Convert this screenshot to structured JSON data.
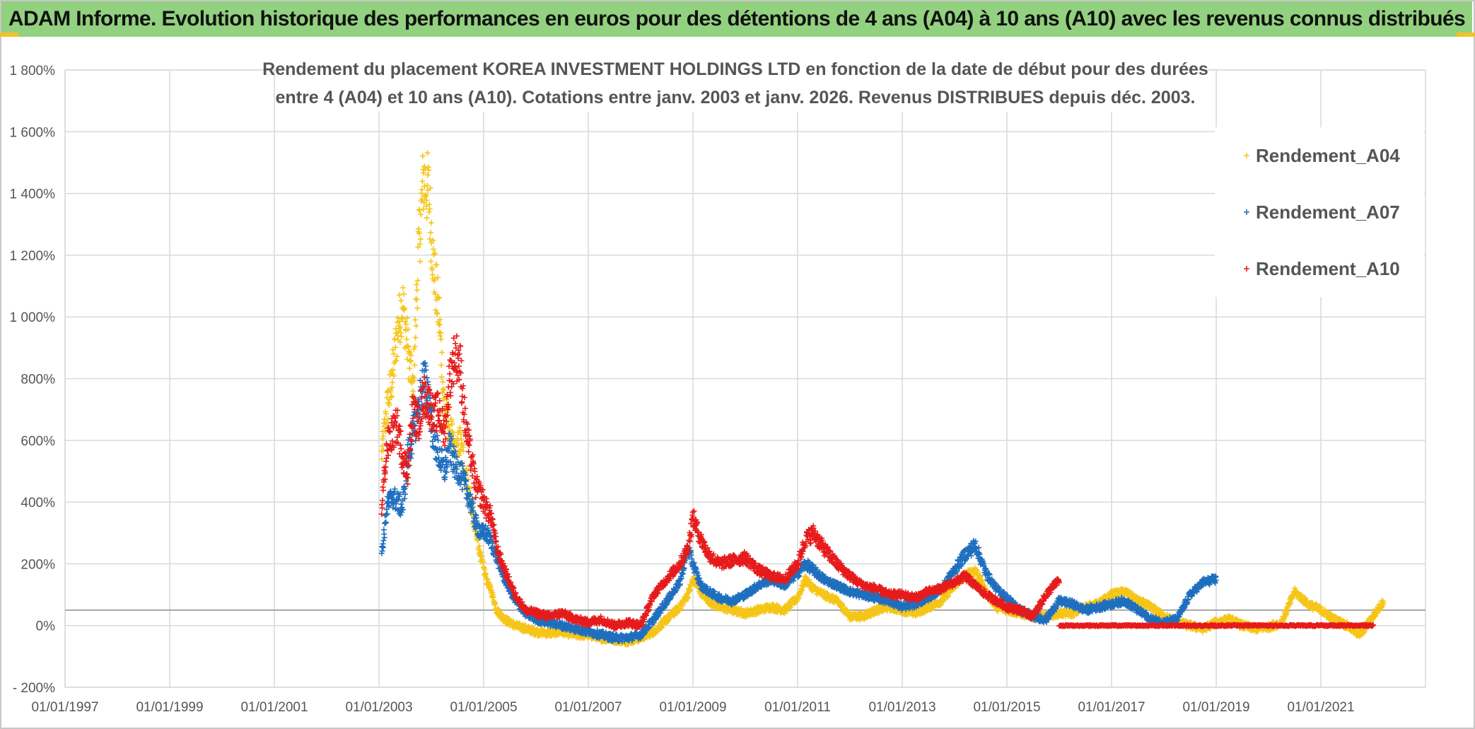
{
  "header": {
    "banner": "ADAM Informe. Evolution historique des performances en euros pour des détentions de 4 ans (A04) à 10 ans (A10) avec les revenus connus distribués"
  },
  "colors": {
    "banner_bg": "#92d17f",
    "accent": "#f2c22b",
    "A04": "#f5c518",
    "A07": "#1f6fbf",
    "A10": "#e61b1b"
  },
  "chart_data": {
    "type": "scatter",
    "title_lines": [
      "Rendement du placement KOREA INVESTMENT HOLDINGS LTD en fonction de la date de début pour des durées",
      "entre 4 (A04) et 10 ans (A10). Cotations entre janv. 2003 et janv. 2026. Revenus DISTRIBUES depuis déc. 2003."
    ],
    "xlim": [
      1997.0,
      2023.0
    ],
    "ylim": [
      -200,
      1800
    ],
    "y_ticks": [
      1800,
      1600,
      1400,
      1200,
      1000,
      800,
      600,
      400,
      200,
      0,
      -200
    ],
    "y_tick_labels": [
      "1 800%",
      "1 600%",
      "1 400%",
      "1 200%",
      "1 000%",
      "800%",
      "600%",
      "400%",
      "200%",
      "0%",
      "- 200%"
    ],
    "x_ticks": [
      1997,
      1999,
      2001,
      2003,
      2005,
      2007,
      2009,
      2011,
      2013,
      2015,
      2017,
      2019,
      2021
    ],
    "x_tick_labels": [
      "01/01/1997",
      "01/01/1999",
      "01/01/2001",
      "01/01/2003",
      "01/01/2005",
      "01/01/2007",
      "01/01/2009",
      "01/01/2011",
      "01/01/2013",
      "01/01/2015",
      "01/01/2017",
      "01/01/2019",
      "01/01/2021"
    ],
    "reference_line_y": 50,
    "legend": [
      "Rendement_A04",
      "Rendement_A07",
      "Rendement_A10"
    ],
    "legend_position": "top-right",
    "marker": "+",
    "series": [
      {
        "name": "Rendement_A04",
        "color": "#f5c518",
        "x": [
          2003.05,
          2003.15,
          2003.25,
          2003.35,
          2003.45,
          2003.55,
          2003.65,
          2003.75,
          2003.85,
          2003.95,
          2004.05,
          2004.15,
          2004.25,
          2004.35,
          2004.45,
          2004.55,
          2004.65,
          2004.75,
          2004.85,
          2004.95,
          2005.05,
          2005.15,
          2005.25,
          2005.4,
          2005.6,
          2005.8,
          2006.0,
          2006.25,
          2006.5,
          2006.75,
          2007.0,
          2007.25,
          2007.5,
          2007.75,
          2008.0,
          2008.25,
          2008.5,
          2008.75,
          2008.9,
          2009.0,
          2009.15,
          2009.3,
          2009.5,
          2009.75,
          2010.0,
          2010.25,
          2010.5,
          2010.75,
          2011.0,
          2011.15,
          2011.3,
          2011.5,
          2011.75,
          2012.0,
          2012.25,
          2012.5,
          2012.75,
          2013.0,
          2013.25,
          2013.5,
          2013.75,
          2014.0,
          2014.2,
          2014.4,
          2014.6,
          2014.8,
          2015.0,
          2015.25,
          2015.5,
          2015.75,
          2016.0,
          2016.25,
          2016.5,
          2016.75,
          2017.0,
          2017.25,
          2017.5,
          2017.75,
          2018.0,
          2018.25,
          2018.5,
          2018.75,
          2019.0,
          2019.25,
          2019.5,
          2019.75,
          2020.0,
          2020.25,
          2020.5,
          2020.75,
          2021.0,
          2021.25,
          2021.5,
          2021.75,
          2022.0,
          2022.2
        ],
        "y": [
          550,
          700,
          800,
          950,
          1050,
          900,
          750,
          1200,
          1450,
          1400,
          1150,
          1000,
          700,
          650,
          550,
          600,
          500,
          400,
          300,
          220,
          150,
          110,
          50,
          20,
          0,
          -10,
          -20,
          -25,
          -20,
          -30,
          -30,
          -40,
          -45,
          -50,
          -40,
          -20,
          20,
          60,
          100,
          150,
          110,
          80,
          60,
          50,
          40,
          50,
          60,
          50,
          90,
          150,
          120,
          100,
          80,
          30,
          30,
          50,
          60,
          50,
          40,
          60,
          80,
          130,
          160,
          180,
          110,
          60,
          50,
          40,
          30,
          30,
          40,
          40,
          60,
          70,
          100,
          110,
          80,
          60,
          30,
          10,
          0,
          -10,
          10,
          20,
          0,
          -10,
          -5,
          10,
          110,
          70,
          50,
          20,
          0,
          -30,
          30,
          80
        ]
      },
      {
        "name": "Rendement_A07",
        "color": "#1f6fbf",
        "x": [
          2003.05,
          2003.15,
          2003.25,
          2003.35,
          2003.45,
          2003.55,
          2003.65,
          2003.75,
          2003.85,
          2003.95,
          2004.05,
          2004.15,
          2004.25,
          2004.35,
          2004.45,
          2004.55,
          2004.65,
          2004.75,
          2004.85,
          2004.95,
          2005.05,
          2005.15,
          2005.25,
          2005.4,
          2005.6,
          2005.8,
          2006.0,
          2006.25,
          2006.5,
          2006.75,
          2007.0,
          2007.25,
          2007.5,
          2007.75,
          2008.0,
          2008.25,
          2008.5,
          2008.75,
          2008.9,
          2009.0,
          2009.15,
          2009.3,
          2009.5,
          2009.75,
          2010.0,
          2010.25,
          2010.5,
          2010.75,
          2011.0,
          2011.15,
          2011.3,
          2011.5,
          2011.75,
          2012.0,
          2012.25,
          2012.5,
          2012.75,
          2013.0,
          2013.25,
          2013.5,
          2013.75,
          2014.0,
          2014.2,
          2014.4,
          2014.6,
          2014.8,
          2015.0,
          2015.25,
          2015.5,
          2015.75,
          2016.0,
          2016.25,
          2016.5,
          2016.75,
          2017.0,
          2017.25,
          2017.5,
          2017.75,
          2018.0,
          2018.25,
          2018.5,
          2018.75,
          2019.0
        ],
        "y": [
          230,
          380,
          420,
          400,
          380,
          550,
          620,
          700,
          800,
          750,
          600,
          550,
          500,
          580,
          520,
          500,
          450,
          400,
          330,
          300,
          300,
          270,
          220,
          150,
          80,
          40,
          20,
          10,
          0,
          -10,
          -20,
          -30,
          -40,
          -40,
          -30,
          20,
          80,
          140,
          250,
          200,
          130,
          110,
          90,
          80,
          100,
          130,
          150,
          130,
          170,
          200,
          180,
          150,
          130,
          110,
          100,
          90,
          80,
          60,
          70,
          90,
          120,
          180,
          230,
          260,
          170,
          120,
          90,
          50,
          30,
          20,
          80,
          70,
          50,
          60,
          70,
          80,
          50,
          20,
          10,
          20,
          100,
          140,
          150
        ]
      },
      {
        "name": "Rendement_A10",
        "color": "#e61b1b",
        "x": [
          2003.05,
          2003.15,
          2003.25,
          2003.35,
          2003.45,
          2003.55,
          2003.65,
          2003.75,
          2003.85,
          2003.95,
          2004.05,
          2004.15,
          2004.25,
          2004.35,
          2004.45,
          2004.55,
          2004.65,
          2004.75,
          2004.85,
          2004.95,
          2005.05,
          2005.15,
          2005.25,
          2005.4,
          2005.6,
          2005.8,
          2006.0,
          2006.25,
          2006.5,
          2006.75,
          2007.0,
          2007.25,
          2007.5,
          2007.75,
          2008.0,
          2008.25,
          2008.5,
          2008.75,
          2008.9,
          2009.0,
          2009.15,
          2009.3,
          2009.5,
          2009.75,
          2010.0,
          2010.25,
          2010.5,
          2010.75,
          2011.0,
          2011.15,
          2011.3,
          2011.5,
          2011.75,
          2012.0,
          2012.25,
          2012.5,
          2012.75,
          2013.0,
          2013.25,
          2013.5,
          2013.75,
          2014.0,
          2014.2,
          2014.4,
          2014.6,
          2014.8,
          2015.0,
          2015.25,
          2015.5,
          2015.75,
          2016.0
        ],
        "y": [
          380,
          580,
          620,
          650,
          550,
          500,
          700,
          650,
          750,
          720,
          680,
          700,
          620,
          800,
          880,
          850,
          650,
          550,
          450,
          420,
          380,
          350,
          250,
          180,
          100,
          50,
          40,
          30,
          40,
          20,
          10,
          20,
          0,
          10,
          0,
          100,
          150,
          200,
          250,
          350,
          280,
          230,
          200,
          210,
          220,
          180,
          160,
          150,
          200,
          280,
          300,
          250,
          200,
          160,
          130,
          120,
          100,
          100,
          90,
          110,
          120,
          140,
          160,
          130,
          100,
          80,
          60,
          50,
          30,
          100,
          150
        ]
      },
      {
        "name": "Rendement_A10_zero_band",
        "color": "#e61b1b",
        "x_range": [
          2016.0,
          2022.0
        ],
        "y": 0
      }
    ]
  },
  "legend": {
    "items": [
      {
        "label": "Rendement_A04",
        "color": "#f5c518"
      },
      {
        "label": "Rendement_A07",
        "color": "#1f6fbf"
      },
      {
        "label": "Rendement_A10",
        "color": "#e61b1b"
      }
    ]
  }
}
